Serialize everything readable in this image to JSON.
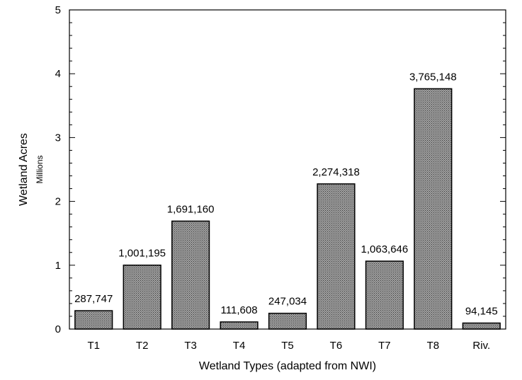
{
  "chart_data": {
    "type": "bar",
    "categories": [
      "T1",
      "T2",
      "T3",
      "T4",
      "T5",
      "T6",
      "T7",
      "T8",
      "Riv."
    ],
    "values": [
      287747,
      1001195,
      1691160,
      111608,
      247034,
      2274318,
      1063646,
      3765148,
      94145
    ],
    "data_labels": [
      "287,747",
      "1,001,195",
      "1,691,160",
      "111,608",
      "247,034",
      "2,274,318",
      "1,063,646",
      "3,765,148",
      "94,145"
    ],
    "xlabel": "Wetland Types (adapted from NWI)",
    "ylabel": "Wetland Acres",
    "ylabel_unit": "Millions",
    "ylim": [
      0,
      5
    ],
    "yticks": [
      "0",
      "1",
      "2",
      "3",
      "4",
      "5"
    ],
    "bar_fill": "#8c8c8c",
    "bar_pattern": "dotted",
    "grid": false
  }
}
